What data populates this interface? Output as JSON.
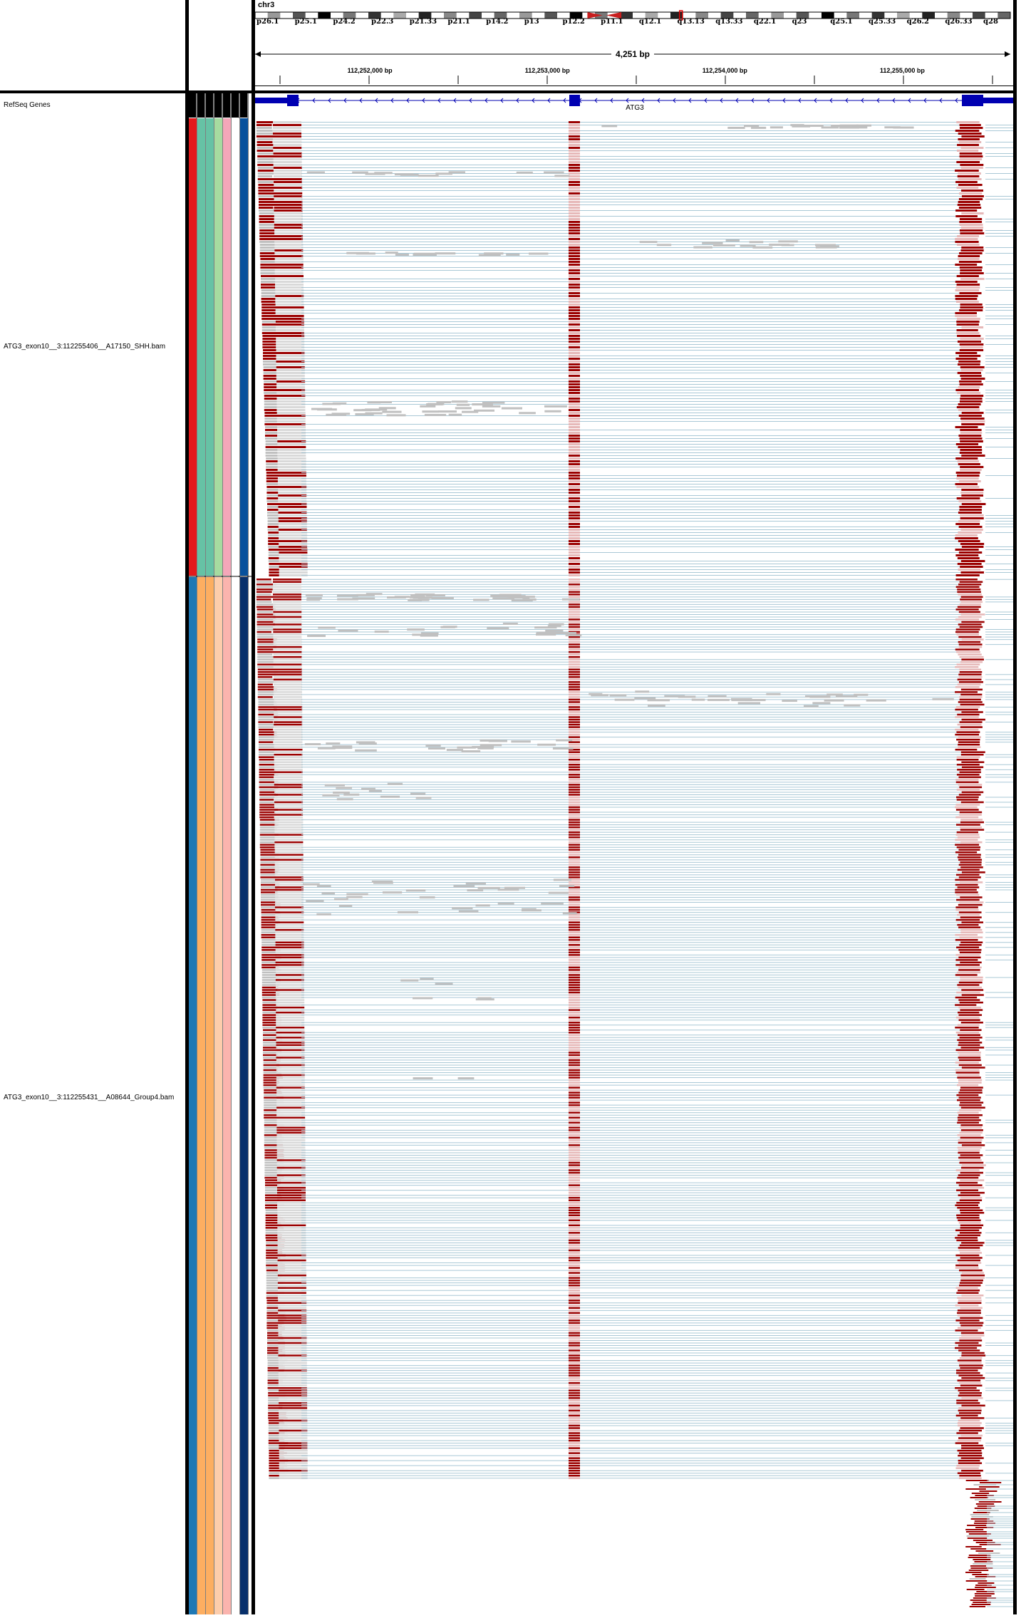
{
  "ruler": {
    "chromosome": "chr3",
    "span_label": "4,251 bp",
    "ticks": [
      {
        "label": "112,252,000 bp",
        "frac": 0.152
      },
      {
        "label": "112,253,000 bp",
        "frac": 0.387
      },
      {
        "label": "112,254,000 bp",
        "frac": 0.622
      },
      {
        "label": "112,255,000 bp",
        "frac": 0.857
      }
    ]
  },
  "ideogram": {
    "bands": [
      "p26.1",
      "p25.1",
      "p24.2",
      "p22.3",
      "p21.33",
      "p21.1",
      "p14.2",
      "p13",
      "p12.2",
      "p11.1",
      "q12.1",
      "q13.13",
      "q13.33",
      "q22.1",
      "q23",
      "q25.1",
      "q25.33",
      "q26.2",
      "q26.33",
      "q28"
    ]
  },
  "tracks": {
    "refseq": {
      "name": "RefSeq Genes",
      "gene": "ATG3"
    },
    "bam1": {
      "name": "ATG3_exon10__3:112255406__A17150_SHH.bam"
    },
    "bam2": {
      "name": "ATG3_exon10__3:112255431__A08644_Group4.bam"
    }
  },
  "attributes": {
    "bam1_colors": [
      "#e41a1c",
      "#66c2a5",
      "#66c2a5",
      "#a6dba0",
      "#f4a7b9",
      "#ffffff",
      "#08519c"
    ],
    "bam2_colors": [
      "#1f78b4",
      "#fdae61",
      "#fdae61",
      "#fdcdac",
      "#fbb4ae",
      "#ffffff",
      "#08306b"
    ]
  },
  "colors": {
    "exon_fill": "#0000b2",
    "intron_line": "#0000b2",
    "junction_line": "#a9c8d6",
    "read_gray": "#c0c0c0",
    "softclip_red": "#9b0000"
  }
}
